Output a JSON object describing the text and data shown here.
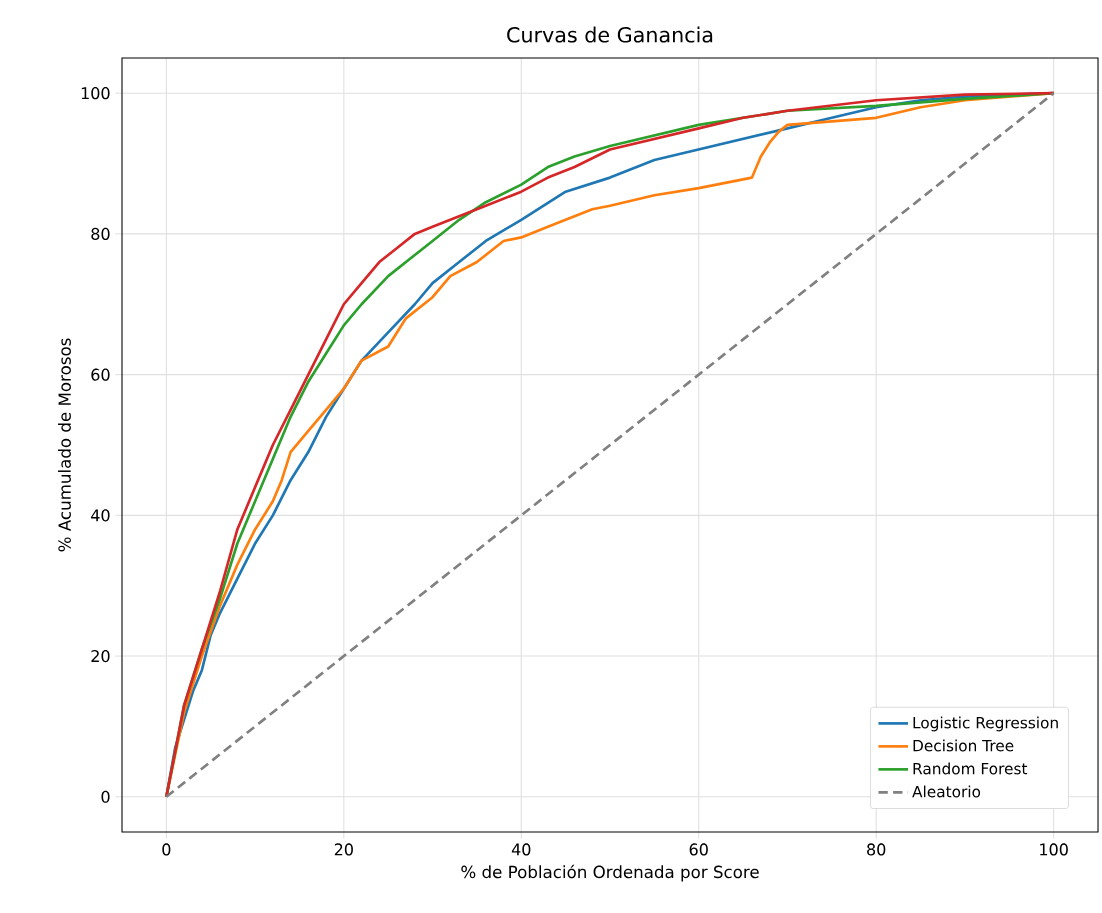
{
  "chart_data": {
    "type": "line",
    "title": "Curvas de Ganancia",
    "xlabel": "% de Población Ordenada por Score",
    "ylabel": "% Acumulado de Morosos",
    "xlim": [
      -5,
      105
    ],
    "ylim": [
      -5,
      105
    ],
    "xticks": [
      0,
      20,
      40,
      60,
      80,
      100
    ],
    "yticks": [
      0,
      20,
      40,
      60,
      80,
      100
    ],
    "grid": true,
    "legend": "bottom right",
    "marker": "none",
    "line_style": "solid",
    "series": [
      {
        "name": "Logistic Regression",
        "color": "#1f77b4",
        "x": [
          0,
          1,
          2,
          3,
          4,
          5,
          6,
          8,
          10,
          12,
          14,
          16,
          18,
          20,
          22,
          25,
          28,
          30,
          33,
          36,
          40,
          45,
          50,
          55,
          60,
          65,
          70,
          75,
          80,
          85,
          90,
          100
        ],
        "values": [
          0,
          7,
          11,
          15,
          18,
          23,
          26,
          31,
          36,
          40,
          45,
          49,
          54,
          58,
          62,
          66,
          70,
          73,
          76,
          79,
          82,
          86,
          88,
          90.5,
          92,
          93.5,
          95,
          96.5,
          98,
          99,
          99.5,
          100
        ]
      },
      {
        "name": "Decision Tree",
        "color": "#ff7f0e",
        "x": [
          0,
          2,
          4,
          6,
          8,
          10,
          12,
          13,
          14,
          16,
          18,
          20,
          22,
          25,
          27,
          30,
          32,
          35,
          37,
          38,
          40,
          43,
          46,
          48,
          50,
          55,
          60,
          64,
          66,
          67,
          68,
          69,
          70,
          75,
          80,
          85,
          90,
          100
        ],
        "values": [
          0,
          12,
          20,
          27,
          33,
          38,
          42,
          45,
          49,
          52,
          55,
          58,
          62,
          64,
          68,
          71,
          74,
          76,
          78,
          79,
          79.5,
          81,
          82.5,
          83.5,
          84,
          85.5,
          86.5,
          87.5,
          88,
          91,
          93,
          94.5,
          95.5,
          96,
          96.5,
          98,
          99,
          100
        ]
      },
      {
        "name": "Random Forest",
        "color": "#2ca02c",
        "x": [
          0,
          2,
          4,
          6,
          8,
          10,
          12,
          14,
          16,
          18,
          20,
          22,
          25,
          28,
          30,
          33,
          36,
          40,
          43,
          46,
          50,
          55,
          60,
          65,
          70,
          80,
          90,
          100
        ],
        "values": [
          0,
          13,
          21,
          28,
          36,
          42,
          48,
          54,
          59,
          63,
          67,
          70,
          74,
          77,
          79,
          82,
          84.5,
          87,
          89.5,
          91,
          92.5,
          94,
          95.5,
          96.5,
          97.5,
          98.2,
          99.2,
          100
        ]
      },
      {
        "color": "#d62728",
        "x": [
          0,
          2,
          4,
          6,
          8,
          10,
          12,
          14,
          16,
          18,
          20,
          22,
          24,
          26,
          28,
          30,
          33,
          36,
          40,
          43,
          46,
          50,
          55,
          60,
          65,
          70,
          80,
          90,
          100
        ],
        "values": [
          0,
          13,
          21,
          29,
          38,
          44,
          50,
          55,
          60,
          65,
          70,
          73,
          76,
          78,
          80,
          81,
          82.5,
          84,
          86,
          88,
          89.5,
          92,
          93.5,
          95,
          96.5,
          97.5,
          99,
          99.8,
          100
        ]
      },
      {
        "name": "Aleatorio",
        "color": "#808080",
        "line_style": "dashed",
        "x": [
          0,
          100
        ],
        "values": [
          0,
          100
        ]
      }
    ]
  }
}
